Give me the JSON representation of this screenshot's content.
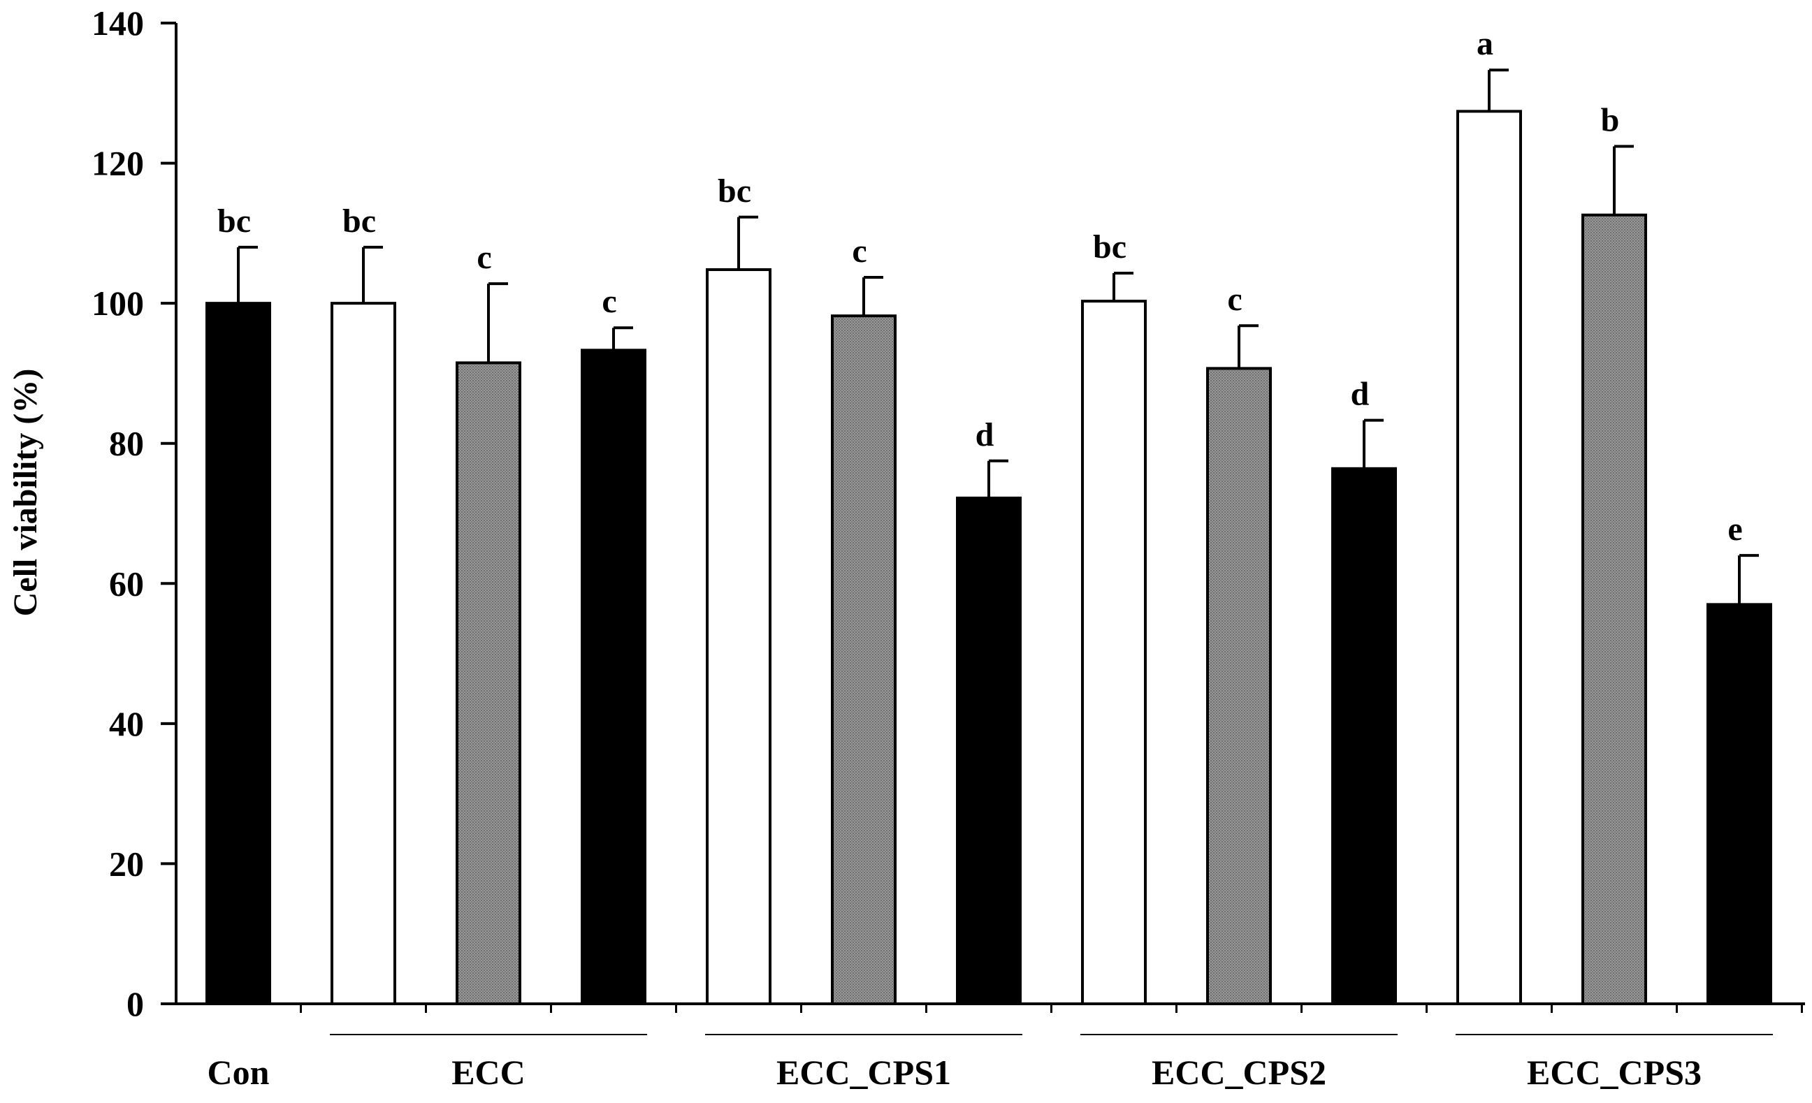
{
  "chart_data": {
    "type": "bar",
    "title": "",
    "xlabel": "",
    "ylabel": "Cell viability (%)",
    "ylim": [
      0,
      140
    ],
    "yticks": [
      0,
      20,
      40,
      60,
      80,
      100,
      120,
      140
    ],
    "grid": false,
    "legend": "none",
    "colors": {
      "white": "#ffffff",
      "gray": "#8c8c8c",
      "black": "#000000"
    },
    "groups": [
      {
        "label": "Con",
        "bars": [
          {
            "value": 100,
            "error": 8,
            "color": "black",
            "label": "bc"
          }
        ]
      },
      {
        "label": "ECC",
        "bars": [
          {
            "value": 100,
            "error": 8,
            "color": "white",
            "label": "bc"
          },
          {
            "value": 91.5,
            "error": 11.3,
            "color": "gray",
            "label": "c"
          },
          {
            "value": 93.3,
            "error": 3.2,
            "color": "black",
            "label": "c"
          }
        ]
      },
      {
        "label": "ECC_CPS1",
        "bars": [
          {
            "value": 104.8,
            "error": 7.5,
            "color": "white",
            "label": "bc"
          },
          {
            "value": 98.2,
            "error": 5.5,
            "color": "gray",
            "label": "c"
          },
          {
            "value": 72.2,
            "error": 5.3,
            "color": "black",
            "label": "d"
          }
        ]
      },
      {
        "label": "ECC_CPS2",
        "bars": [
          {
            "value": 100.3,
            "error": 4,
            "color": "white",
            "label": "bc"
          },
          {
            "value": 90.7,
            "error": 6.1,
            "color": "gray",
            "label": "c"
          },
          {
            "value": 76.4,
            "error": 6.9,
            "color": "black",
            "label": "d"
          }
        ]
      },
      {
        "label": "ECC_CPS3",
        "bars": [
          {
            "value": 127.4,
            "error": 5.9,
            "color": "white",
            "label": "a"
          },
          {
            "value": 112.6,
            "error": 9.8,
            "color": "gray",
            "label": "b"
          },
          {
            "value": 57,
            "error": 7,
            "color": "black",
            "label": "e"
          }
        ]
      }
    ]
  }
}
